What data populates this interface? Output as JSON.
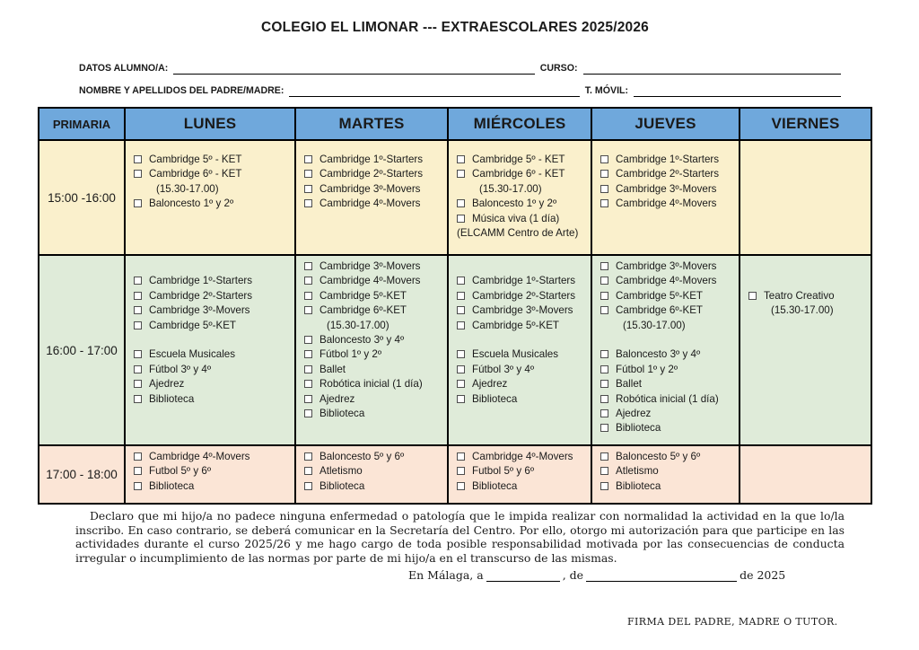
{
  "title": "COLEGIO EL LIMONAR  ---  EXTRAESCOLARES 2025/2026",
  "form": {
    "student_label": "DATOS ALUMNO/A:",
    "course_label": "CURSO:",
    "parent_label": "NOMBRE Y APELLIDOS DEL PADRE/MADRE:",
    "mobile_label": "T. MÓVIL:"
  },
  "colors": {
    "header_blue": "#6FA8DC",
    "row_yellow": "#FAF0CC",
    "row_green": "#DFEBD9",
    "row_pink": "#FBE5D6",
    "border": "#000000"
  },
  "table": {
    "corner_label": "PRIMARIA",
    "days": [
      "LUNES",
      "MARTES",
      "MIÉRCOLES",
      "JUEVES",
      "VIERNES"
    ],
    "rows": [
      {
        "time": "15:00 -16:00",
        "bg": "#FAF0CC",
        "cells": [
          [
            {
              "item": "Cambridge 5º - KET"
            },
            {
              "item": "Cambridge 6º - KET"
            },
            {
              "note": "(15.30-17.00)"
            },
            {
              "item": "Baloncesto 1º y 2º"
            }
          ],
          [
            {
              "item": "Cambridge 1º-Starters"
            },
            {
              "item": "Cambridge 2º-Starters"
            },
            {
              "item": "Cambridge 3º-Movers"
            },
            {
              "item": "Cambridge 4º-Movers"
            }
          ],
          [
            {
              "item": "Cambridge 5º - KET"
            },
            {
              "item": "Cambridge 6º - KET"
            },
            {
              "note": "(15.30-17.00)"
            },
            {
              "item": "Baloncesto 1º y 2º"
            },
            {
              "item": "Música viva (1 día)"
            },
            {
              "noteleft": "(ELCAMM Centro de Arte)"
            }
          ],
          [
            {
              "item": "Cambridge 1º-Starters"
            },
            {
              "item": "Cambridge 2º-Starters"
            },
            {
              "item": "Cambridge 3º-Movers"
            },
            {
              "item": "Cambridge 4º-Movers"
            }
          ],
          []
        ]
      },
      {
        "time": "16:00 - 17:00",
        "bg": "#DFEBD9",
        "cells": [
          [
            {
              "gap": true
            },
            {
              "item": "Cambridge 1º-Starters"
            },
            {
              "item": "Cambridge 2º-Starters"
            },
            {
              "item": "Cambridge 3º-Movers"
            },
            {
              "item": "Cambridge 5º-KET"
            },
            {
              "gap": true
            },
            {
              "item": "Escuela Musicales"
            },
            {
              "item": "Fútbol 3º y 4º"
            },
            {
              "item": "Ajedrez"
            },
            {
              "item": "Biblioteca"
            }
          ],
          [
            {
              "item": "Cambridge 3º-Movers"
            },
            {
              "item": "Cambridge 4º-Movers"
            },
            {
              "item": "Cambridge 5º-KET"
            },
            {
              "item": "Cambridge 6º-KET"
            },
            {
              "note": "(15.30-17.00)"
            },
            {
              "item": "Baloncesto 3º y 4º"
            },
            {
              "item": "Fútbol 1º y 2º"
            },
            {
              "item": "Ballet"
            },
            {
              "item": "Robótica inicial (1 día)"
            },
            {
              "item": "Ajedrez"
            },
            {
              "item": "Biblioteca"
            }
          ],
          [
            {
              "gap": true
            },
            {
              "item": "Cambridge 1º-Starters"
            },
            {
              "item": "Cambridge 2º-Starters"
            },
            {
              "item": "Cambridge 3º-Movers"
            },
            {
              "item": "Cambridge 5º-KET"
            },
            {
              "gap": true
            },
            {
              "item": "Escuela Musicales"
            },
            {
              "item": "Fútbol 3º y 4º"
            },
            {
              "item": "Ajedrez"
            },
            {
              "item": "Biblioteca"
            }
          ],
          [
            {
              "item": "Cambridge 3º-Movers"
            },
            {
              "item": "Cambridge 4º-Movers"
            },
            {
              "item": "Cambridge 5º-KET"
            },
            {
              "item": "Cambridge 6º-KET"
            },
            {
              "note": "(15.30-17.00)"
            },
            {
              "gap": true
            },
            {
              "item": "Baloncesto 3º y 4º"
            },
            {
              "item": "Fútbol 1º y 2º"
            },
            {
              "item": "Ballet"
            },
            {
              "item": "Robótica inicial (1 día)"
            },
            {
              "item": "Ajedrez"
            },
            {
              "item": "Biblioteca"
            }
          ],
          [
            {
              "gap": true
            },
            {
              "gap": true
            },
            {
              "item": "Teatro Creativo"
            },
            {
              "note": "(15.30-17.00)"
            }
          ]
        ]
      },
      {
        "time": "17:00 - 18:00",
        "bg": "#FBE5D6",
        "cells": [
          [
            {
              "item": "Cambridge 4º-Movers"
            },
            {
              "item": "Futbol 5º y 6º"
            },
            {
              "item": "Biblioteca"
            }
          ],
          [
            {
              "item": "Baloncesto 5º y 6º"
            },
            {
              "item": "Atletismo"
            },
            {
              "item": "Biblioteca"
            }
          ],
          [
            {
              "item": "Cambridge 4º-Movers"
            },
            {
              "item": "Futbol 5º y 6º"
            },
            {
              "item": "Biblioteca"
            }
          ],
          [
            {
              "item": "Baloncesto 5º y 6º"
            },
            {
              "item": "Atletismo"
            },
            {
              "item": "Biblioteca"
            }
          ],
          []
        ]
      }
    ]
  },
  "footer": {
    "declaration": "Declaro que mi hijo/a no padece ninguna enfermedad o patología que le impida realizar con normalidad la actividad en la que lo/la inscribo. En caso contrario, se deberá comunicar en la Secretaría del Centro. Por ello, otorgo mi autorización para que participe en las actividades durante el curso 2025/26 y me hago cargo de toda posible responsabilidad motivada por las consecuencias de conducta irregular o incumplimiento de las normas por parte de mi hijo/a en el transcurso de las mismas.",
    "place_prefix": "En Málaga, a",
    "place_mid": ", de",
    "place_suffix": "de 2025",
    "signature": "FIRMA DEL PADRE, MADRE O TUTOR."
  }
}
